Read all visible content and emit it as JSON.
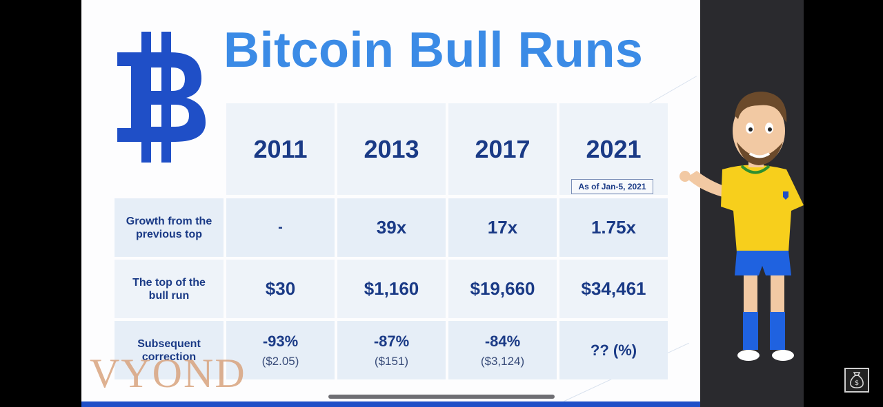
{
  "slide": {
    "title": "Bitcoin Bull Runs",
    "watermark": "VYOND"
  },
  "table": {
    "years": [
      "2011",
      "2013",
      "2017",
      "2021"
    ],
    "as_of_note": "As of Jan-5, 2021",
    "rows": [
      {
        "label": "Growth from the previous top",
        "values": [
          "-",
          "39x",
          "17x",
          "1.75x"
        ]
      },
      {
        "label": "The top of the bull run",
        "values": [
          "$30",
          "$1,160",
          "$19,660",
          "$34,461"
        ]
      },
      {
        "label": "Subsequent correction",
        "values": [
          "-93%",
          "-87%",
          "-84%",
          "?? (%)"
        ],
        "subvalues": [
          "($2.05)",
          "($151)",
          "($3,124)",
          ""
        ]
      }
    ]
  },
  "icons": {
    "logo": "bitcoin-logo-icon",
    "character": "cartoon-presenter",
    "corner": "money-bag-icon"
  },
  "colors": {
    "title": "#3b8be6",
    "logo": "#1f4fc7",
    "table_text": "#1a3a86",
    "cell_bg": "#e6eef7"
  }
}
